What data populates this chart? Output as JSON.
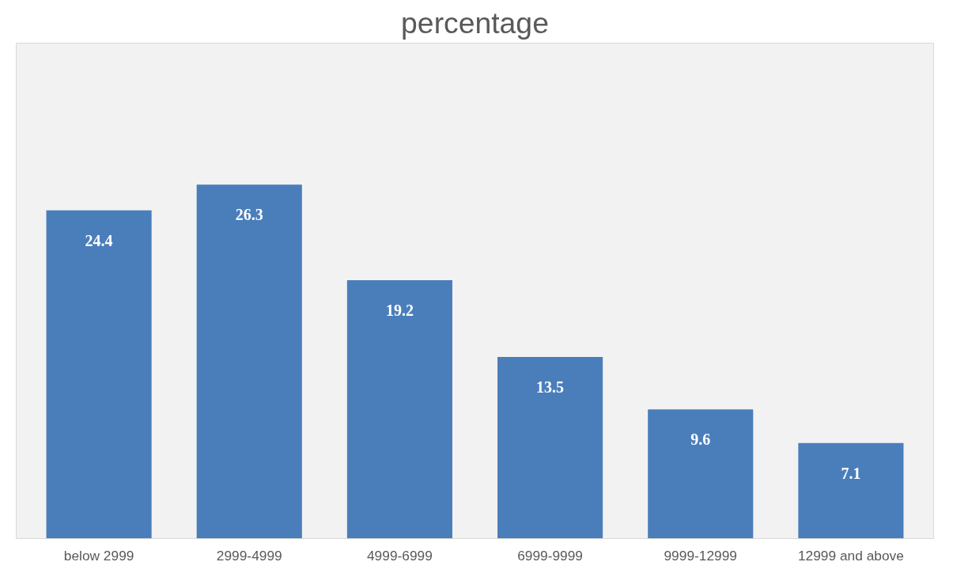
{
  "chart_data": {
    "type": "bar",
    "title": "percentage",
    "categories": [
      "below 2999",
      "2999-4999",
      "4999-6999",
      "6999-9999",
      "9999-12999",
      "12999 and above"
    ],
    "values": [
      24.4,
      26.3,
      19.2,
      13.5,
      9.6,
      7.1
    ],
    "color": "#4a7ebb",
    "data_labels": true,
    "grid": false
  }
}
